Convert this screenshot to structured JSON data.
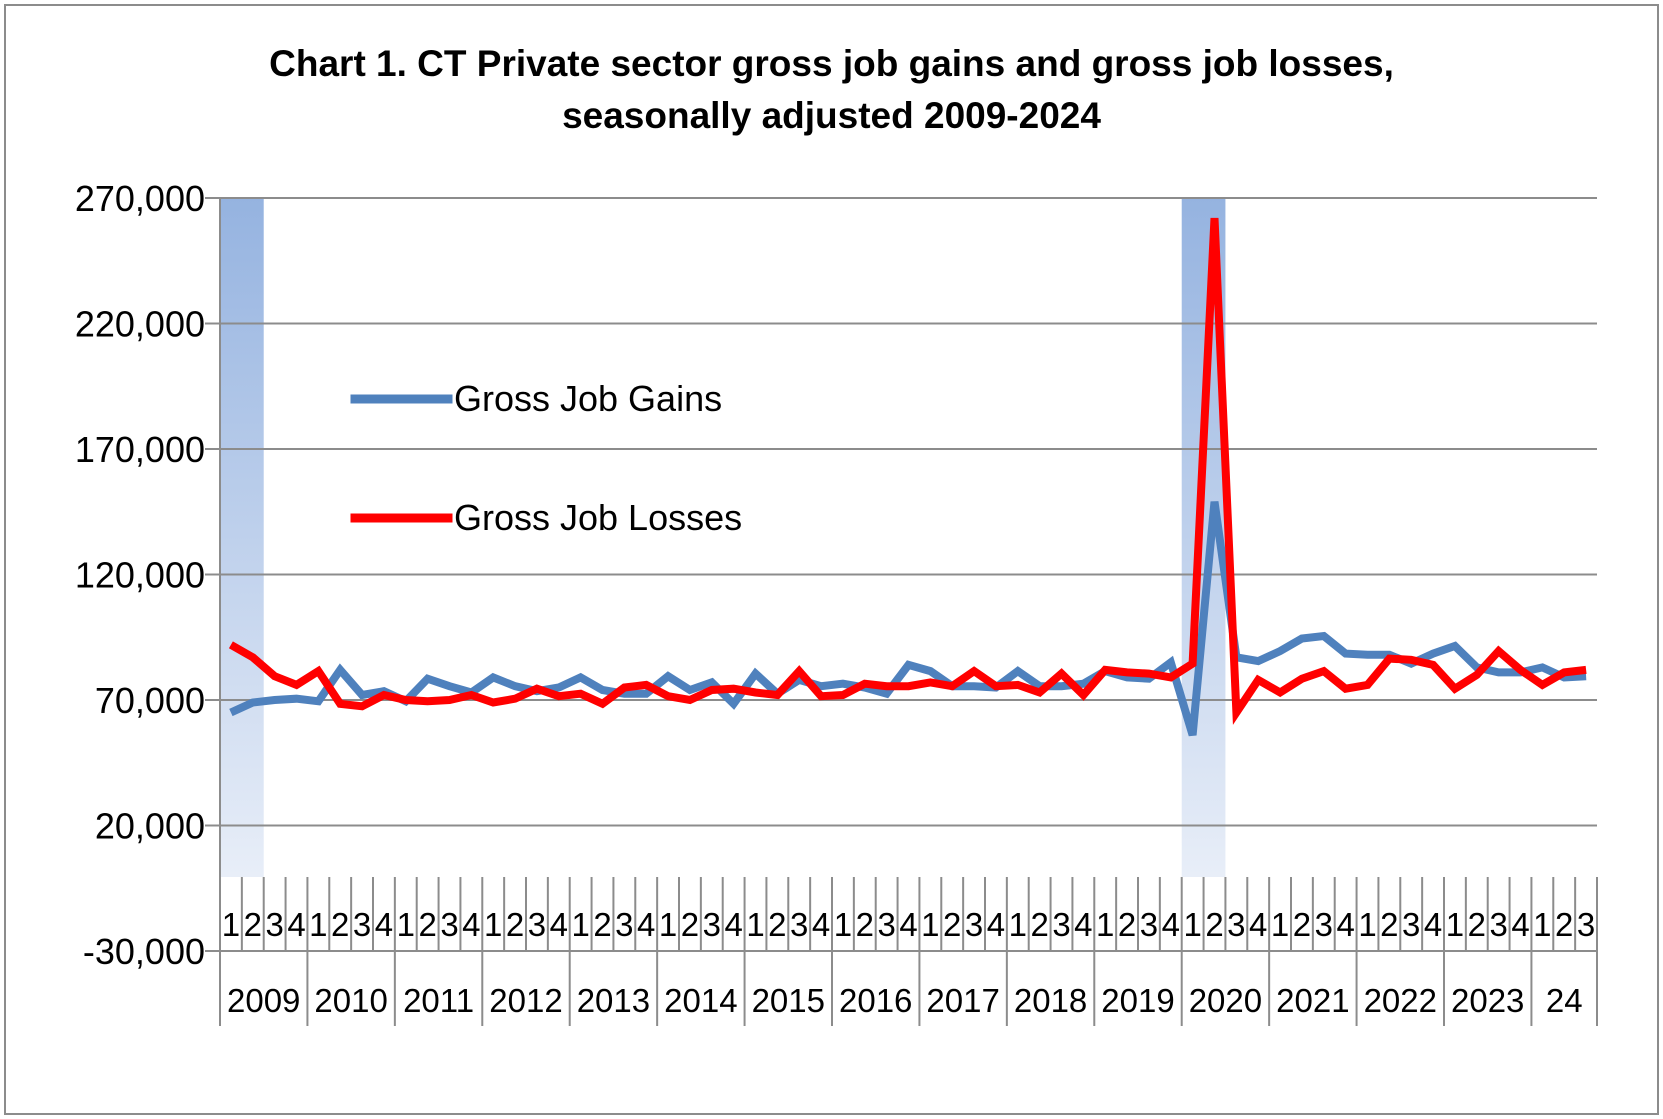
{
  "chart_data": {
    "type": "line",
    "title_line1": "Chart 1. CT Private sector gross job gains and gross job losses,",
    "title_line2": "seasonally adjusted 2009-2024",
    "ylim": [
      -30000,
      270000
    ],
    "yticks": [
      "270,000",
      "220,000",
      "170,000",
      "120,000",
      "70,000",
      "20,000",
      "-30,000"
    ],
    "ytick_values": [
      270000,
      220000,
      170000,
      120000,
      70000,
      20000,
      -30000
    ],
    "grid": true,
    "legend_position": "upper-left inside plot",
    "recession_shading": [
      {
        "from_quarter_index": 0,
        "to_quarter_index": 1
      },
      {
        "from_quarter_index": 44,
        "to_quarter_index": 45
      }
    ],
    "year_labels": [
      "2009",
      "2010",
      "2011",
      "2012",
      "2013",
      "2014",
      "2015",
      "2016",
      "2017",
      "2018",
      "2019",
      "2020",
      "2021",
      "2022",
      "2023",
      "24"
    ],
    "year_quarter_counts": [
      4,
      4,
      4,
      4,
      4,
      4,
      4,
      4,
      4,
      4,
      4,
      4,
      4,
      4,
      4,
      3
    ],
    "quarter_labels": [
      "1",
      "2",
      "3",
      "4",
      "1",
      "2",
      "3",
      "4",
      "1",
      "2",
      "3",
      "4",
      "1",
      "2",
      "3",
      "4",
      "1",
      "2",
      "3",
      "4",
      "1",
      "2",
      "3",
      "4",
      "1",
      "2",
      "3",
      "4",
      "1",
      "2",
      "3",
      "4",
      "1",
      "2",
      "3",
      "4",
      "1",
      "2",
      "3",
      "4",
      "1",
      "2",
      "3",
      "4",
      "1",
      "2",
      "3",
      "4",
      "1",
      "2",
      "3",
      "4",
      "1",
      "2",
      "3",
      "4",
      "1",
      "2",
      "3",
      "4",
      "1",
      "2",
      "3"
    ],
    "series": [
      {
        "name": "Gross Job Gains",
        "color": "#4f81bd",
        "values": [
          65000,
          69000,
          70000,
          70500,
          69500,
          82000,
          72000,
          73500,
          69500,
          78500,
          75500,
          73000,
          79000,
          75500,
          73500,
          75000,
          79000,
          74000,
          72500,
          72500,
          79500,
          74000,
          77000,
          68500,
          80500,
          72500,
          78000,
          75500,
          76500,
          75000,
          72500,
          84000,
          81500,
          75500,
          75500,
          75000,
          81500,
          75500,
          75500,
          76500,
          81500,
          79000,
          78500,
          85000,
          56000,
          149000,
          87000,
          85500,
          89500,
          94500,
          95500,
          88500,
          88000,
          88000,
          84500,
          88500,
          91500,
          83000,
          81000,
          81000,
          83000,
          79000,
          79500
        ]
      },
      {
        "name": "Gross Job Losses",
        "color": "#ff0000",
        "values": [
          92000,
          87000,
          79500,
          76000,
          81500,
          68500,
          67500,
          72000,
          70000,
          69500,
          70000,
          72000,
          69000,
          70500,
          74500,
          71500,
          72500,
          68500,
          75000,
          76000,
          71500,
          70000,
          74000,
          74500,
          73000,
          72000,
          81500,
          71500,
          72000,
          76500,
          75500,
          75500,
          77000,
          75500,
          81500,
          75500,
          76000,
          73000,
          80500,
          72000,
          82000,
          81000,
          80500,
          79000,
          84500,
          262000,
          65000,
          78000,
          73000,
          78500,
          81500,
          74500,
          76000,
          86500,
          86000,
          84000,
          74500,
          80000,
          89500,
          82000,
          76000,
          81000,
          82000
        ]
      }
    ]
  }
}
